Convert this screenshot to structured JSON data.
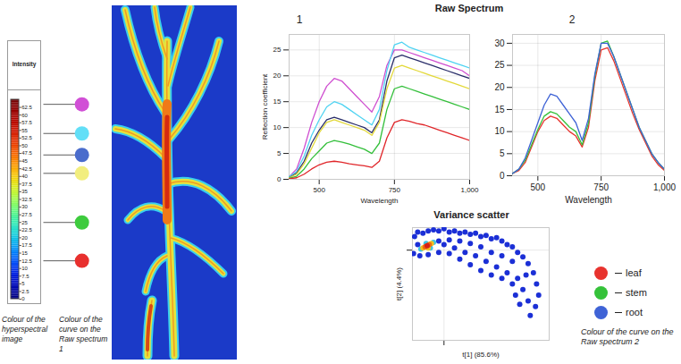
{
  "title": "Raw Spectrum",
  "chart_data": [
    {
      "type": "image",
      "caption": "Colour of the hyperspectral image",
      "colorbar": {
        "title": "Intensity",
        "range": [
          0,
          65
        ],
        "ticks": [
          0,
          2.5,
          5,
          7.5,
          10,
          12.5,
          15,
          17.5,
          20,
          22.5,
          25,
          27.5,
          30,
          32.5,
          35,
          37.5,
          40,
          42.5,
          45,
          47.5,
          50,
          52.5,
          55,
          57.5,
          60,
          62.5
        ]
      },
      "markers": {
        "caption": "Colour of the curve on the Raw spectrum 1",
        "values": [
          63.5,
          54,
          47,
          41,
          25,
          12.5
        ],
        "colors": [
          "#d14fd6",
          "#62dff7",
          "#4a6ccc",
          "#f2ee7e",
          "#3ecb3e",
          "#e8302e"
        ]
      }
    },
    {
      "type": "line",
      "panel": "1",
      "xlabel": "Wavelength",
      "ylabel": "Reflection coefficient",
      "x": [
        400,
        425,
        450,
        475,
        500,
        525,
        550,
        575,
        600,
        625,
        650,
        675,
        700,
        725,
        750,
        775,
        800,
        825,
        850,
        875,
        900,
        925,
        950,
        975,
        1000
      ],
      "xlim": [
        400,
        1000
      ],
      "xticks": [
        500,
        750,
        1000
      ],
      "ylim": [
        0,
        28
      ],
      "yticks": [
        0,
        5,
        10,
        15,
        20,
        25
      ],
      "grid": true,
      "series": [
        {
          "color": "#cf4fd0",
          "values": [
            0.5,
            2,
            6,
            11,
            15,
            18,
            19.5,
            19,
            17.5,
            16,
            14.5,
            13,
            16,
            22,
            25,
            25,
            24.5,
            24,
            23.5,
            23,
            22.5,
            22,
            21.5,
            21,
            20
          ]
        },
        {
          "color": "#4fd3f2",
          "values": [
            0.5,
            1.5,
            4.5,
            8.5,
            11.5,
            14,
            15,
            14.5,
            13.5,
            12.5,
            11.5,
            10.5,
            13.5,
            21,
            26,
            26.5,
            25.5,
            25,
            24.5,
            24,
            23.5,
            23,
            22.5,
            22,
            21.5
          ]
        },
        {
          "color": "#2b2f6b",
          "values": [
            0.3,
            1.2,
            3.5,
            7,
            9.5,
            11.5,
            12,
            11.5,
            11,
            10.5,
            10,
            9,
            11.5,
            19,
            23.5,
            24,
            23.5,
            23,
            22.5,
            22,
            21.5,
            21,
            20.5,
            20,
            19.5
          ]
        },
        {
          "color": "#e3d93a",
          "values": [
            0.3,
            1,
            3,
            6,
            9,
            11,
            11.5,
            11,
            10.5,
            10,
            9.5,
            8.5,
            11,
            17.5,
            21.5,
            22,
            21.5,
            21,
            20.5,
            20,
            19.5,
            19,
            18.5,
            18,
            17.5
          ]
        },
        {
          "color": "#33bf3a",
          "values": [
            0.2,
            0.6,
            2,
            4,
            5.5,
            7,
            7.5,
            7.2,
            6.8,
            6.3,
            5.8,
            5,
            7,
            13.5,
            17.5,
            18,
            17.5,
            17,
            16.5,
            16,
            15.5,
            15,
            14.5,
            14,
            13.5
          ]
        },
        {
          "color": "#e0262a",
          "values": [
            0.1,
            0.3,
            1,
            2,
            2.8,
            3.3,
            3.5,
            3.3,
            3,
            2.8,
            2.6,
            2.3,
            3.5,
            8,
            11,
            11.5,
            11.2,
            10.8,
            10.5,
            10,
            9.5,
            9,
            8.5,
            8,
            7.5
          ]
        }
      ]
    },
    {
      "type": "line",
      "panel": "2",
      "xlabel": "Wavelength",
      "x": [
        400,
        425,
        450,
        475,
        500,
        525,
        550,
        575,
        600,
        625,
        650,
        675,
        700,
        725,
        750,
        775,
        800,
        825,
        850,
        875,
        900,
        925,
        950,
        975,
        1000
      ],
      "xlim": [
        400,
        1000
      ],
      "xticks": [
        500,
        750,
        1000
      ],
      "ylim": [
        0,
        32
      ],
      "yticks": [
        0,
        5,
        10,
        15,
        20,
        25,
        30
      ],
      "grid": true,
      "legend": "bottom-right",
      "caption": "Colour of the curve on the Raw spectrum 2",
      "series": [
        {
          "name": "leaf",
          "color": "#e8332e",
          "values": [
            0.5,
            1.2,
            3,
            6.5,
            10,
            12.5,
            13.5,
            13,
            11.5,
            10,
            9,
            6.5,
            11,
            21.5,
            28.5,
            29,
            26,
            22,
            18,
            14,
            10.5,
            7.5,
            4.5,
            2.5,
            1.2
          ]
        },
        {
          "name": "stem",
          "color": "#35c23a",
          "values": [
            0.5,
            1.5,
            3.5,
            7,
            10.5,
            13.5,
            14.5,
            14,
            12.5,
            11,
            10,
            7,
            12,
            22.5,
            30,
            30.5,
            27,
            23,
            19,
            15,
            11,
            8,
            5,
            3,
            1.5
          ]
        },
        {
          "name": "root",
          "color": "#3f63d6",
          "values": [
            0.5,
            1.5,
            4,
            8,
            12,
            16,
            18.5,
            18,
            16,
            14,
            12,
            8,
            13,
            23,
            30,
            30,
            27,
            23,
            19,
            15,
            11,
            8,
            5,
            3,
            1.5
          ]
        }
      ]
    },
    {
      "type": "scatter",
      "title": "Variance scatter",
      "xlabel": "t[1] (85.6%)",
      "ylabel": "t[2] (4.4%)",
      "xlim": [
        -3,
        10
      ],
      "ylim": [
        -8,
        2
      ],
      "xticks": [
        0
      ],
      "yticks": [
        0
      ],
      "grid": true,
      "tick_labels": false,
      "x": [
        -2.8,
        -2.5,
        -2.0,
        -1.5,
        -1.0,
        -0.5,
        0,
        0.5,
        1,
        1.5,
        2,
        2.5,
        3,
        3.5,
        4,
        4.5,
        5,
        5.5,
        6,
        6.5,
        7,
        7.5,
        8,
        8.5,
        8.8,
        9,
        8.7,
        8.2,
        -2.5,
        -2.9,
        -2.3,
        -0.5,
        0,
        0.5,
        1,
        1.5,
        2,
        2.5,
        3,
        3.5,
        4,
        4.5,
        5,
        5.5,
        6,
        6.5,
        7,
        7.5,
        6.5,
        5.5,
        4.5,
        3.5,
        2.5,
        1.5,
        0.5,
        -0.5,
        -1.5,
        8,
        7.2,
        6.8,
        7.8,
        -1.0,
        -2.2,
        -1.7,
        -1.3,
        -1.2,
        -2.0,
        -1.5,
        -1.4,
        -1.8,
        -1.6
      ],
      "y": [
        1.2,
        1.6,
        1.5,
        1.7,
        1.8,
        1.7,
        1.9,
        1.6,
        1.7,
        1.5,
        1.6,
        1.4,
        1.5,
        1.2,
        1.3,
        1,
        1.1,
        0.8,
        0.5,
        0.3,
        -0.2,
        -0.6,
        -1.2,
        -2.0,
        -3.0,
        -4.0,
        -5.0,
        -5.8,
        0.5,
        -0.3,
        -0.5,
        0.8,
        0.5,
        0.9,
        0.2,
        0.8,
        -0.2,
        0.6,
        -0.5,
        0.3,
        -1.0,
        -0.2,
        -1.5,
        -0.5,
        -2.0,
        -1.0,
        -2.5,
        -3.5,
        -3.0,
        -2.5,
        -2.2,
        -1.8,
        -1.3,
        -0.8,
        -0.3,
        -0.2,
        -0.4,
        -4.5,
        -4.8,
        -4.0,
        -2.2,
        0.7,
        0.1,
        0.6,
        0.2,
        0.6,
        0.2,
        0.2,
        0.5,
        0.3,
        0.4
      ],
      "colors": [
        "#1b2fd6",
        "#1b2fd6",
        "#1b2fd6",
        "#1b2fd6",
        "#1b2fd6",
        "#1b2fd6",
        "#1b2fd6",
        "#1b2fd6",
        "#1b2fd6",
        "#1b2fd6",
        "#1b2fd6",
        "#1b2fd6",
        "#1b2fd6",
        "#1b2fd6",
        "#1b2fd6",
        "#1b2fd6",
        "#1b2fd6",
        "#1b2fd6",
        "#1b2fd6",
        "#1b2fd6",
        "#1b2fd6",
        "#1b2fd6",
        "#1b2fd6",
        "#1b2fd6",
        "#1b2fd6",
        "#1b2fd6",
        "#1b2fd6",
        "#1b2fd6",
        "#1b2fd6",
        "#1b2fd6",
        "#1b2fd6",
        "#1b2fd6",
        "#1b2fd6",
        "#1b2fd6",
        "#1b2fd6",
        "#1b2fd6",
        "#1b2fd6",
        "#1b2fd6",
        "#1b2fd6",
        "#1b2fd6",
        "#1b2fd6",
        "#1b2fd6",
        "#1b2fd6",
        "#1b2fd6",
        "#1b2fd6",
        "#1b2fd6",
        "#1b2fd6",
        "#1b2fd6",
        "#1b2fd6",
        "#1b2fd6",
        "#1b2fd6",
        "#1b2fd6",
        "#1b2fd6",
        "#1b2fd6",
        "#1b2fd6",
        "#1b2fd6",
        "#1b2fd6",
        "#1b2fd6",
        "#1b2fd6",
        "#1b2fd6",
        "#1b2fd6",
        "#3cc4e6",
        "#3cc4e6",
        "#3cc4e6",
        "#3cc4e6",
        "#f3c21f",
        "#f3c21f",
        "#f3c21f",
        "#ee6a12",
        "#ee6a12",
        "#d42018"
      ]
    }
  ]
}
